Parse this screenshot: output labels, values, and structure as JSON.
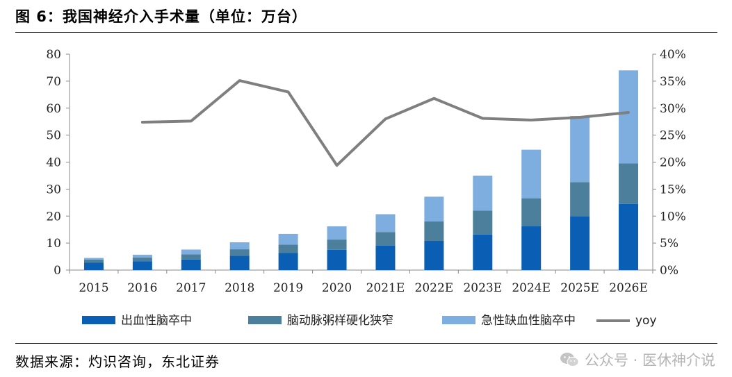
{
  "header": {
    "title": "图 6：我国神经介入手术量（单位：万台）"
  },
  "footer": {
    "source": "数据来源：灼识咨询，东北证券"
  },
  "watermark": {
    "icon": "wechat-icon",
    "text": "公众号 · 医休神介说"
  },
  "colors": {
    "s1": "#0a5fb4",
    "s2": "#4c7f9c",
    "s3": "#7eaee0",
    "yoy": "#7f7f7f"
  },
  "chart_data": {
    "type": "bar",
    "stacked": true,
    "categories": [
      "2015",
      "2016",
      "2017",
      "2018",
      "2019",
      "2020",
      "2021E",
      "2022E",
      "2023E",
      "2024E",
      "2025E",
      "2026E"
    ],
    "series": [
      {
        "name": "出血性脑卒中",
        "values": [
          2.7,
          3.3,
          3.9,
          5.3,
          6.3,
          7.5,
          9.1,
          10.8,
          13.2,
          16.3,
          20.0,
          24.5
        ]
      },
      {
        "name": "脑动脉粥样硬化狭窄",
        "values": [
          1.2,
          1.4,
          1.9,
          2.4,
          3.1,
          3.8,
          5.0,
          7.2,
          8.8,
          10.3,
          12.6,
          15.0
        ]
      },
      {
        "name": "急性缺血性脑卒中",
        "values": [
          0.6,
          1.0,
          1.8,
          2.6,
          4.0,
          4.9,
          6.6,
          9.2,
          13.0,
          18.0,
          24.5,
          34.5
        ]
      }
    ],
    "line_series": {
      "name": "yoy",
      "values": [
        null,
        27.4,
        27.6,
        35.1,
        33.0,
        19.4,
        28.0,
        31.8,
        28.1,
        27.8,
        28.3,
        29.2
      ]
    },
    "y_left": {
      "min": 0,
      "max": 80,
      "ticks": [
        0,
        10,
        20,
        30,
        40,
        50,
        60,
        70,
        80
      ],
      "tick_labels": [
        "0",
        "10",
        "20",
        "30",
        "40",
        "50",
        "60",
        "70",
        "80"
      ]
    },
    "y_right": {
      "min": 0,
      "max": 40,
      "ticks": [
        0,
        5,
        10,
        15,
        20,
        25,
        30,
        35,
        40
      ],
      "tick_labels": [
        "0%",
        "5%",
        "10%",
        "15%",
        "20%",
        "25%",
        "30%",
        "35%",
        "40%"
      ]
    },
    "grid": false,
    "legend_position": "bottom"
  }
}
